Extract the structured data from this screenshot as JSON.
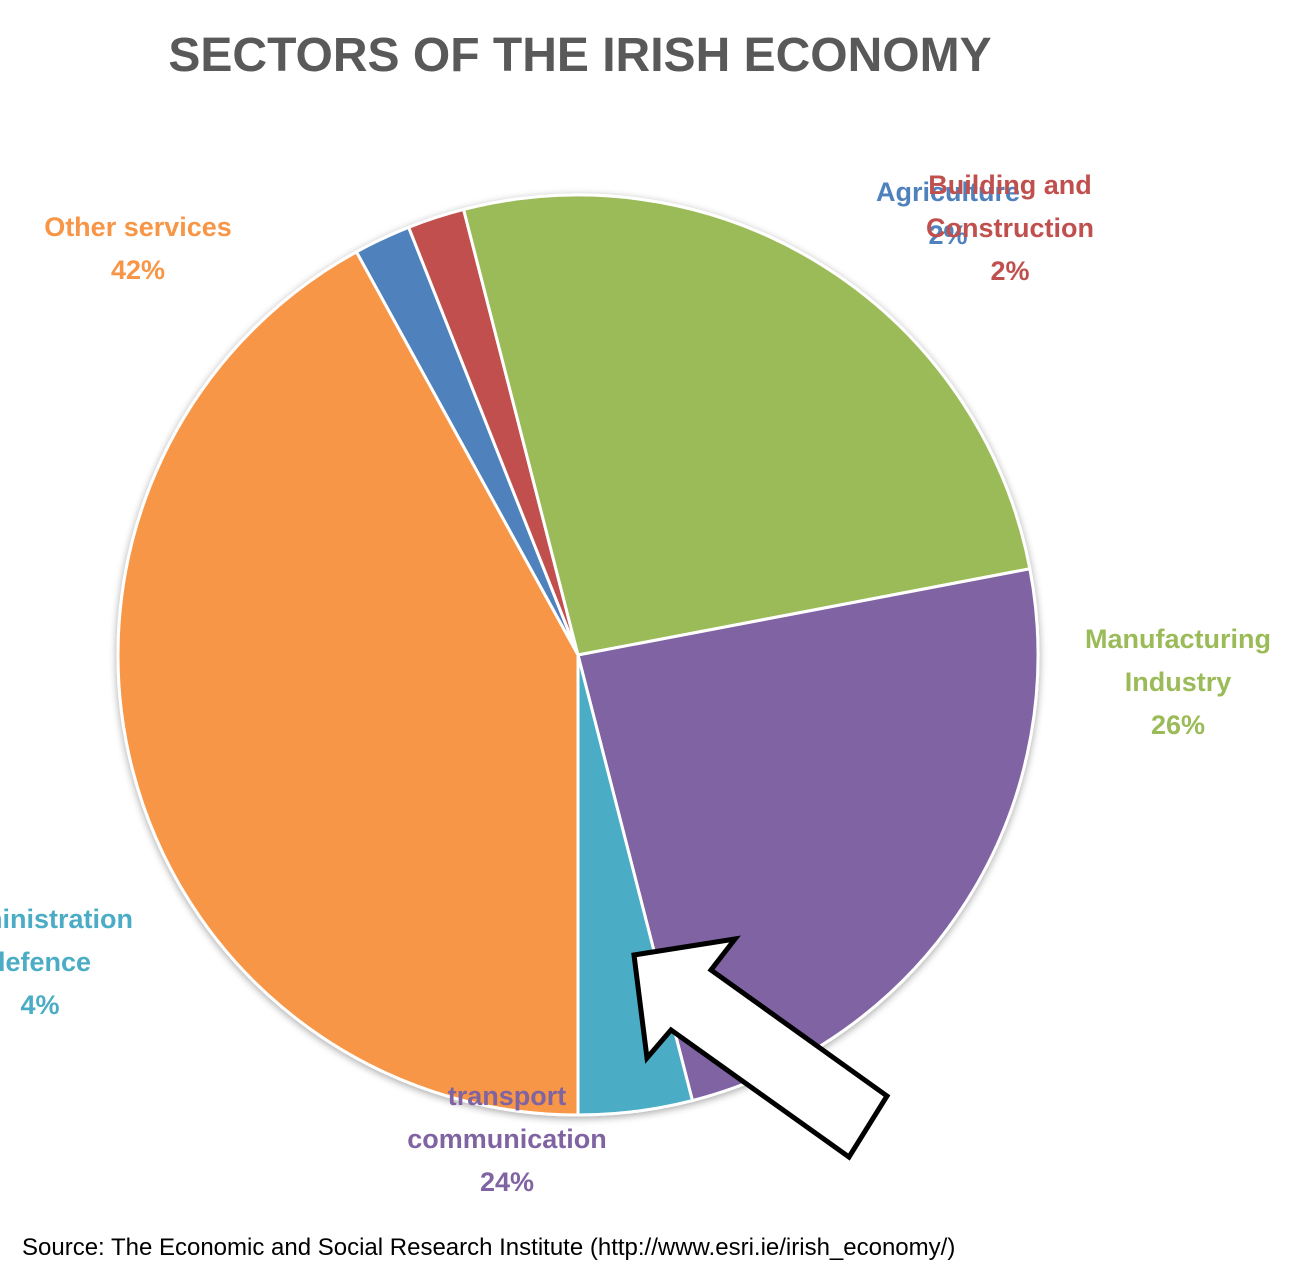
{
  "chart_data": {
    "type": "pie",
    "title": "SECTORS OF THE IRISH ECONOMY",
    "slices": [
      {
        "label": [
          "Agriculture"
        ],
        "value": 2,
        "pct": "2%",
        "color": "#4F81BD"
      },
      {
        "label": [
          "Building and",
          "Construction"
        ],
        "value": 2,
        "pct": "2%",
        "color": "#C0504D"
      },
      {
        "label": [
          "Manufacturing",
          "Industry"
        ],
        "value": 26,
        "pct": "26%",
        "color": "#9BBB59"
      },
      {
        "label": [
          "transport",
          "communication"
        ],
        "value": 24,
        "pct": "24%",
        "color": "#8064A2"
      },
      {
        "label": [
          "administration",
          "defence"
        ],
        "value": 4,
        "pct": "4%",
        "color": "#4BACC6"
      },
      {
        "label": [
          "Other services"
        ],
        "value": 42,
        "pct": "42%",
        "color": "#F79646"
      }
    ]
  },
  "source": "Source: The Economic and Social Research Institute (http://www.esri.ie/irish_economy/)"
}
